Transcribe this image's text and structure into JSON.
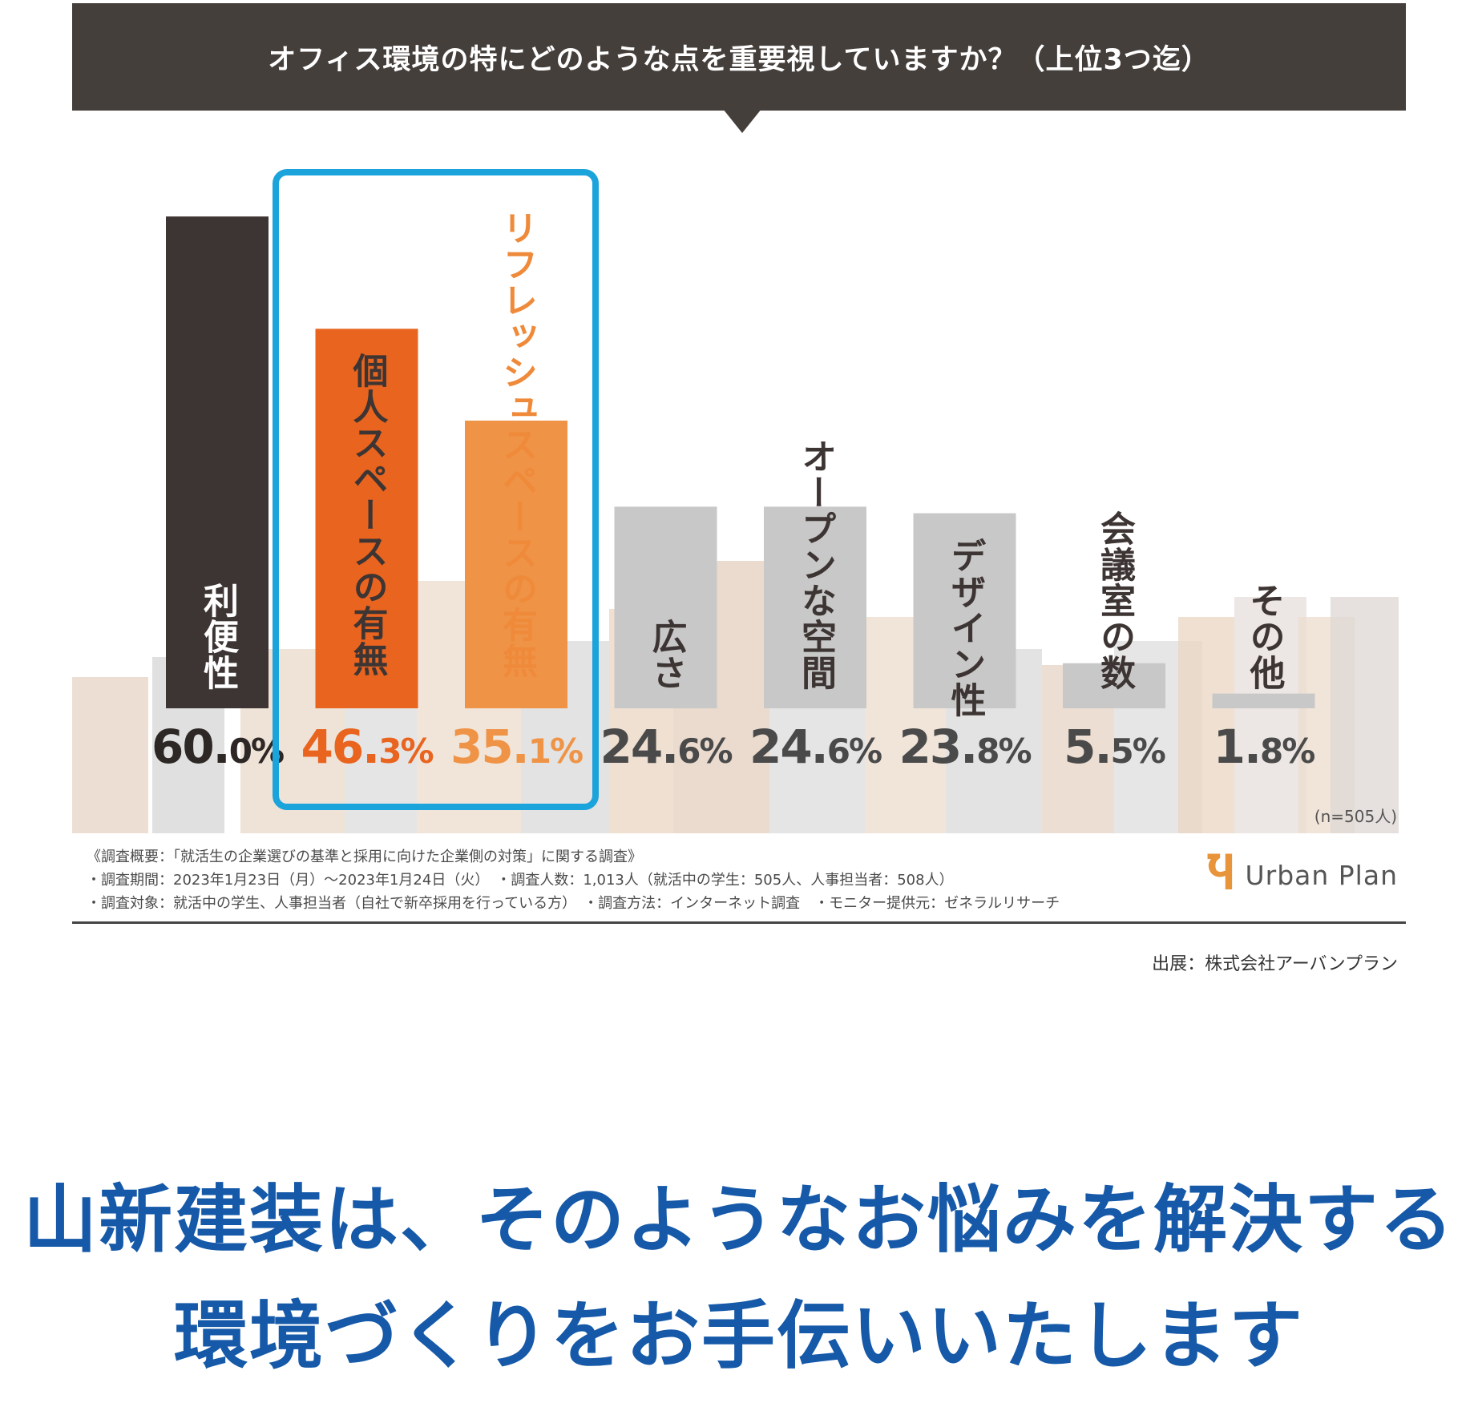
{
  "chart_data": {
    "type": "bar",
    "title": "オフィス環境の特にどのような点を重要視していますか？（上位3つ迄）",
    "categories": [
      "利便性",
      "個人スペースの有無",
      "リフレッシュスペースの有無",
      "広さ",
      "オープンな空間",
      "デザイン性",
      "会議室の数",
      "その他"
    ],
    "values": [
      60.0,
      46.3,
      35.1,
      24.6,
      24.6,
      23.8,
      5.5,
      1.8
    ],
    "value_labels": [
      {
        "int": "60.",
        "dec": "0%"
      },
      {
        "int": "46.",
        "dec": "3%"
      },
      {
        "int": "35.",
        "dec": "1%"
      },
      {
        "int": "24.",
        "dec": "6%"
      },
      {
        "int": "24.",
        "dec": "6%"
      },
      {
        "int": "23.",
        "dec": "8%"
      },
      {
        "int": "5.",
        "dec": "5%"
      },
      {
        "int": "1.",
        "dec": "8%"
      }
    ],
    "ylim": [
      0,
      60
    ],
    "grid": false,
    "highlighted_categories": [
      "個人スペースの有無",
      "リフレッシュスペースの有無"
    ],
    "sample_note": "(n=505人)"
  },
  "colors": {
    "banner": "#453f3c",
    "bars": [
      "#3d3533",
      "#e8641f",
      "#ef9346",
      "#c8c8c8",
      "#c8c8c8",
      "#c8c8c8",
      "#c8c8c8",
      "#c8c8c8"
    ],
    "bar_label_text": [
      "#ffffff",
      "#3d3533",
      "#ef8a3a",
      "#3d3533",
      "#3d3533",
      "#3d3533",
      "#3d3533",
      "#3d3533"
    ],
    "value_text": [
      "#2d2826",
      "#e8641f",
      "#ef9346",
      "#4a4a4a",
      "#4a4a4a",
      "#4a4a4a",
      "#4a4a4a",
      "#4a4a4a"
    ],
    "highlight_border": "#1ba3dc",
    "headline": "#1559a8"
  },
  "survey": {
    "line1": "《調査概要：「就活生の企業選びの基準と採用に向けた企業側の対策」に関する調査》",
    "line2": "・調査期間：2023年1月23日（月）〜2023年1月24日（火）　・調査人数：1,013人（就活中の学生：505人、人事担当者：508人）",
    "line3": "・調査対象：就活中の学生、人事担当者（自社で新卒採用を行っている方）　・調査方法：インターネット調査　・モニター提供元：ゼネラルリサーチ"
  },
  "brand": {
    "mark": "Ⴏ",
    "name": "Urban Plan"
  },
  "source": "出展：株式会社アーバンプラン",
  "headline": {
    "line1": "山新建装は、そのようなお悩みを解決する",
    "line2": "環境づくりをお手伝いいたします"
  }
}
